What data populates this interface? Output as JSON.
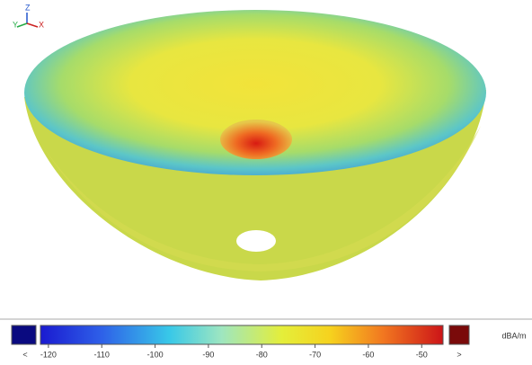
{
  "axes_triad": {
    "y_label": "Y",
    "z_label": "Z",
    "x_label": "X"
  },
  "colorbar": {
    "unit": "dBA/m",
    "under_label": "<",
    "over_label": ">",
    "xlim": [
      -121.5,
      -46
    ],
    "xticks": [
      -120,
      -110,
      -100,
      -90,
      -80,
      -70,
      -60,
      -50
    ]
  }
}
